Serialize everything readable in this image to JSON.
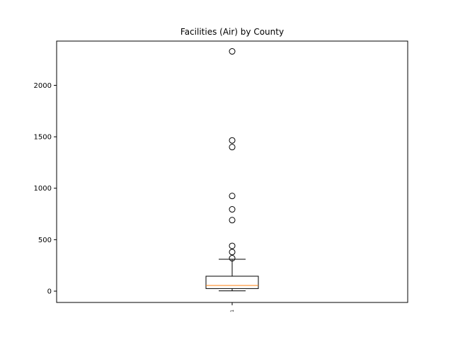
{
  "chart_data": {
    "type": "box",
    "title": "Facilities (Air) by County",
    "xlabel": "",
    "ylabel": "",
    "categories": [
      "1"
    ],
    "ylim": [
      -110,
      2430
    ],
    "yticks": [
      0,
      500,
      1000,
      1500,
      2000
    ],
    "grid": false,
    "boxes": [
      {
        "category": "1",
        "whisker_low": 3,
        "q1": 25,
        "median": 55,
        "q3": 145,
        "whisker_high": 310,
        "outliers": [
          320,
          380,
          440,
          690,
          795,
          925,
          1400,
          1465,
          2330
        ]
      }
    ],
    "colors": {
      "box": "#000000",
      "median": "#ff7f0e",
      "outlier": "#000000",
      "axes": "#000000"
    }
  }
}
